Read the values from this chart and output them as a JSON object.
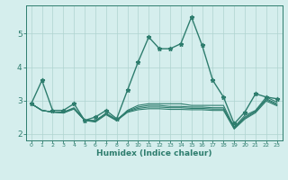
{
  "x": [
    0,
    1,
    2,
    3,
    4,
    5,
    6,
    7,
    8,
    9,
    10,
    11,
    12,
    13,
    14,
    15,
    16,
    17,
    18,
    19,
    20,
    21,
    22,
    23
  ],
  "lines": [
    {
      "y": [
        2.9,
        3.6,
        2.7,
        2.7,
        2.9,
        2.4,
        2.5,
        2.7,
        2.45,
        3.3,
        4.15,
        4.9,
        4.55,
        4.55,
        4.7,
        5.5,
        4.65,
        3.6,
        3.1,
        2.3,
        2.65,
        3.2,
        3.1,
        3.05
      ],
      "color": "#2e7d6e",
      "linewidth": 1.0,
      "marker": "*",
      "markersize": 3.5
    },
    {
      "y": [
        2.9,
        2.7,
        2.65,
        2.65,
        2.75,
        2.4,
        2.4,
        2.6,
        2.4,
        2.7,
        2.85,
        2.9,
        2.9,
        2.9,
        2.9,
        2.85,
        2.85,
        2.85,
        2.85,
        2.2,
        2.55,
        2.7,
        3.1,
        2.95
      ],
      "color": "#2e7d6e",
      "linewidth": 0.8,
      "marker": null,
      "markersize": 0
    },
    {
      "y": [
        2.9,
        2.7,
        2.65,
        2.65,
        2.78,
        2.42,
        2.38,
        2.62,
        2.42,
        2.68,
        2.8,
        2.85,
        2.85,
        2.82,
        2.82,
        2.8,
        2.8,
        2.78,
        2.78,
        2.18,
        2.5,
        2.68,
        3.05,
        2.9
      ],
      "color": "#2e7d6e",
      "linewidth": 0.8,
      "marker": null,
      "markersize": 0
    },
    {
      "y": [
        2.9,
        2.7,
        2.65,
        2.63,
        2.76,
        2.41,
        2.37,
        2.6,
        2.41,
        2.66,
        2.76,
        2.8,
        2.8,
        2.78,
        2.78,
        2.76,
        2.76,
        2.74,
        2.74,
        2.16,
        2.47,
        2.66,
        3.02,
        2.87
      ],
      "color": "#2e7d6e",
      "linewidth": 0.8,
      "marker": null,
      "markersize": 0
    },
    {
      "y": [
        2.9,
        2.7,
        2.65,
        2.62,
        2.74,
        2.4,
        2.35,
        2.57,
        2.39,
        2.64,
        2.72,
        2.75,
        2.75,
        2.73,
        2.73,
        2.72,
        2.72,
        2.7,
        2.7,
        2.14,
        2.44,
        2.63,
        2.98,
        2.84
      ],
      "color": "#2e7d6e",
      "linewidth": 0.8,
      "marker": null,
      "markersize": 0
    }
  ],
  "xlabel": "Humidex (Indice chaleur)",
  "xlim": [
    -0.5,
    23.5
  ],
  "ylim": [
    1.8,
    5.85
  ],
  "yticks": [
    2,
    3,
    4,
    5
  ],
  "xticks": [
    0,
    1,
    2,
    3,
    4,
    5,
    6,
    7,
    8,
    9,
    10,
    11,
    12,
    13,
    14,
    15,
    16,
    17,
    18,
    19,
    20,
    21,
    22,
    23
  ],
  "bg_color": "#d5eeed",
  "grid_color": "#afd4d0",
  "line_color": "#2e7d6e",
  "tick_color": "#2e7d6e",
  "xlabel_color": "#2e7d6e"
}
